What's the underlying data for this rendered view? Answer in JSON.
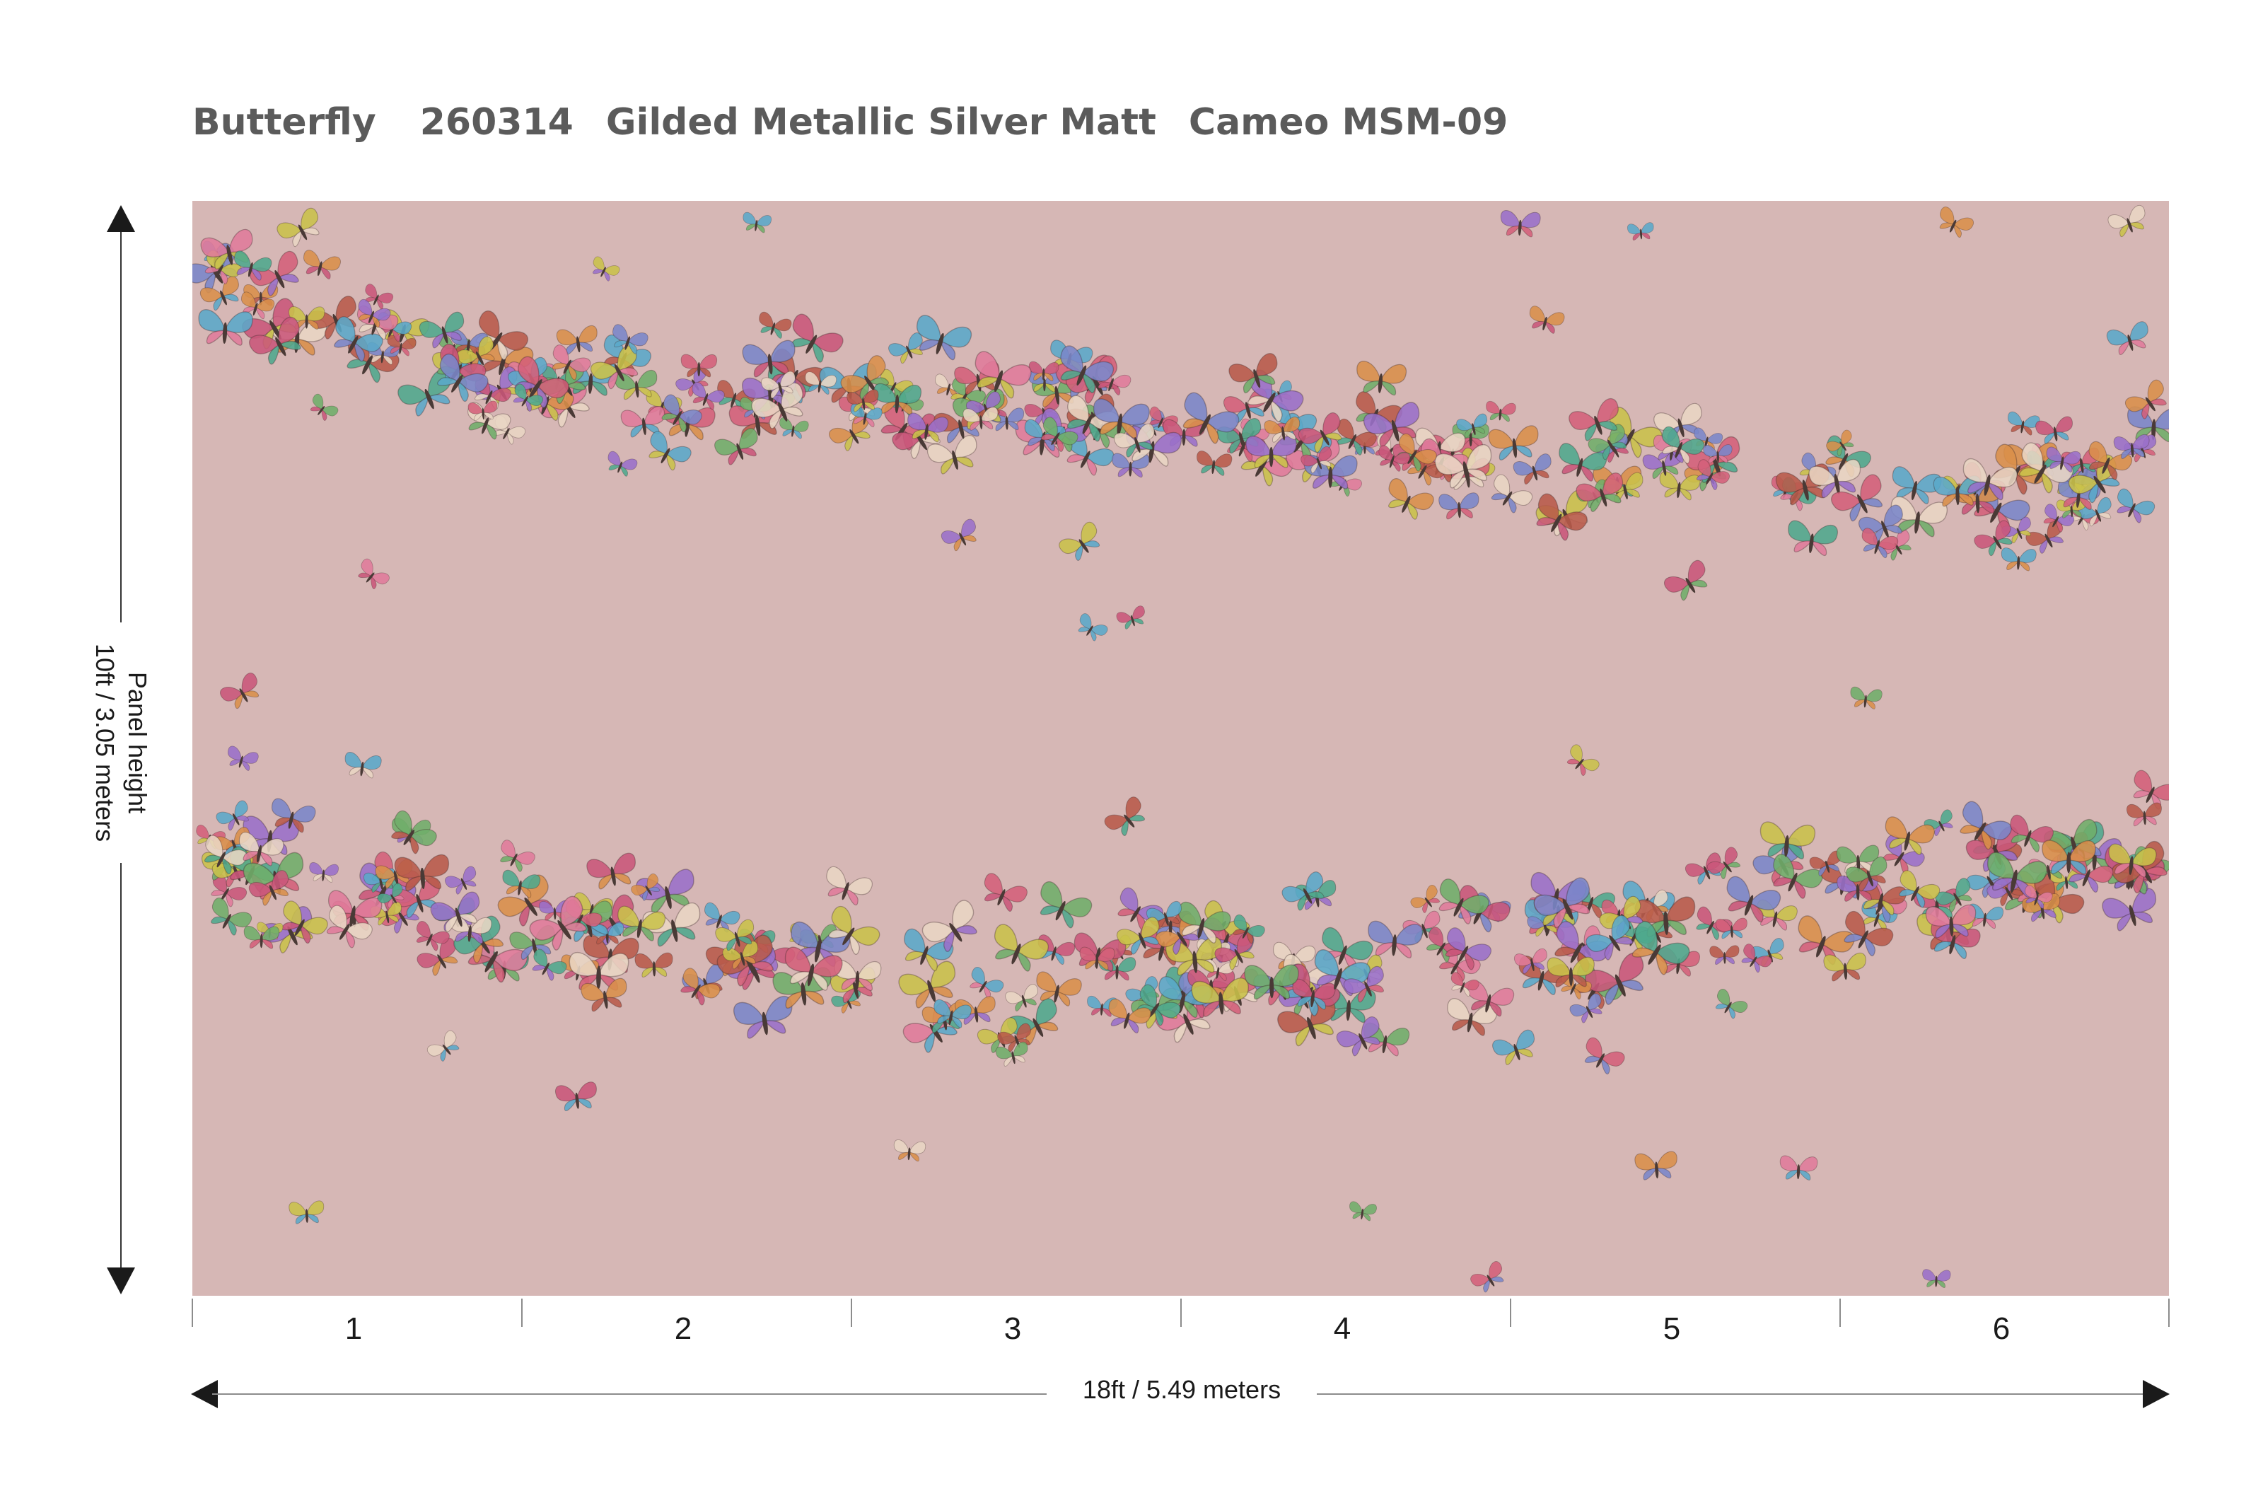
{
  "header": {
    "pattern_name": "Butterfly",
    "pattern_code": "260314",
    "finish": "Gilded Metallic Silver Matt",
    "colorway": "Cameo MSM-09"
  },
  "panel": {
    "background_color": "#d6b7b5",
    "motif": "butterfly-scatter",
    "butterfly_colors": [
      "#c9577a",
      "#7a86c9",
      "#6fae6a",
      "#d98f4a",
      "#e07b9b",
      "#5aa9c9",
      "#c9c24a",
      "#9a6fc9",
      "#e9d6c4",
      "#b85a4a",
      "#4fa88d",
      "#d4607a"
    ]
  },
  "dimensions": {
    "height_label": "Panel height",
    "height_value": "10ft / 3.05 meters",
    "width_value": "18ft / 5.49 meters"
  },
  "panel_numbers": [
    "1",
    "2",
    "3",
    "4",
    "5",
    "6"
  ]
}
